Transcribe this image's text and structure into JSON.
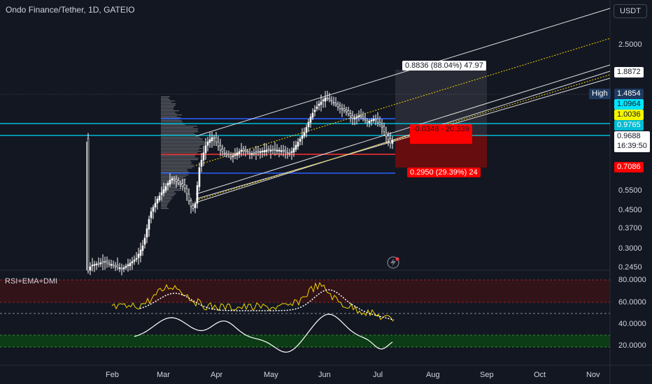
{
  "header": {
    "title": "Ondo Finance/Tether, 1D, GATEIO",
    "currency_button": "USDT"
  },
  "price_axis": {
    "ticks": [
      "2.5000",
      "0.5500",
      "0.4500",
      "0.3700",
      "0.3000",
      "0.2450"
    ],
    "markers": {
      "top_line": "1.8872",
      "high_label": "High",
      "high_value": "1.4854",
      "blue1": "1.0964",
      "yellow": "1.0036",
      "cyan": "0.9765",
      "current": "0.9688",
      "countdown": "16:39:50",
      "red": "0.7086"
    }
  },
  "indicator": {
    "label": "RSI+EMA+DMI",
    "ticks": [
      "80.0000",
      "60.0000",
      "40.0000",
      "20.0000"
    ]
  },
  "position_tool": {
    "target_label": "0.8836 (88.04%) 47.97",
    "entry_label": "-0.0348 - 20.339",
    "stop_label": "0.2950 (29.39%) 24"
  },
  "time_axis": [
    "Feb",
    "Mar",
    "Apr",
    "May",
    "Jun",
    "Jul",
    "Aug",
    "Sep",
    "Oct",
    "Nov"
  ],
  "colors": {
    "background": "#131722",
    "up": "#ffffff",
    "down": "#ffffff",
    "blue_line": "#2962ff",
    "cyan_line": "#00bcd4",
    "yellow": "#f5d300",
    "red": "#ff0000"
  }
}
